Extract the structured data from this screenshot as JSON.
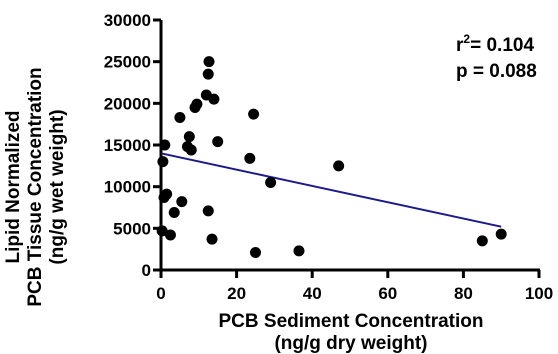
{
  "chart_data": {
    "type": "scatter",
    "xlabel_lines": [
      "PCB Sediment Concentration",
      "(ng/g dry weight)"
    ],
    "ylabel_lines": [
      "Lipid Normalized",
      "PCB Tissue Concentration",
      "(ng/g wet weight)"
    ],
    "xlim": [
      0,
      100
    ],
    "ylim": [
      0,
      30000
    ],
    "x_ticks": [
      0,
      20,
      40,
      60,
      80,
      100
    ],
    "y_ticks": [
      0,
      5000,
      10000,
      15000,
      20000,
      25000,
      30000
    ],
    "x_tick_labels": [
      "0",
      "20",
      "40",
      "60",
      "80",
      "100"
    ],
    "y_tick_labels": [
      "0",
      "5000",
      "10000",
      "15000",
      "20000",
      "25000",
      "30000"
    ],
    "stats": {
      "r2_prefix": "r",
      "r2_sup": "2",
      "r2_value": "= 0.104",
      "p": "p = 0.088"
    },
    "point_color": "#000000",
    "line_color": "#1a1a8c",
    "points": [
      {
        "x": 0.3,
        "y": 4700
      },
      {
        "x": 0.5,
        "y": 13000
      },
      {
        "x": 0.8,
        "y": 8700
      },
      {
        "x": 1.0,
        "y": 15000
      },
      {
        "x": 1.5,
        "y": 9100
      },
      {
        "x": 2.5,
        "y": 4200
      },
      {
        "x": 3.5,
        "y": 6900
      },
      {
        "x": 5.0,
        "y": 18300
      },
      {
        "x": 5.5,
        "y": 8200
      },
      {
        "x": 7.0,
        "y": 14800
      },
      {
        "x": 7.5,
        "y": 16000
      },
      {
        "x": 8.0,
        "y": 14400
      },
      {
        "x": 9.0,
        "y": 19500
      },
      {
        "x": 9.5,
        "y": 19900
      },
      {
        "x": 12.0,
        "y": 21000
      },
      {
        "x": 12.5,
        "y": 23500
      },
      {
        "x": 12.7,
        "y": 25000
      },
      {
        "x": 12.5,
        "y": 7100
      },
      {
        "x": 13.5,
        "y": 3700
      },
      {
        "x": 14.0,
        "y": 20500
      },
      {
        "x": 15.0,
        "y": 15400
      },
      {
        "x": 23.5,
        "y": 13400
      },
      {
        "x": 24.5,
        "y": 18700
      },
      {
        "x": 25.0,
        "y": 2100
      },
      {
        "x": 29.0,
        "y": 10500
      },
      {
        "x": 36.5,
        "y": 2300
      },
      {
        "x": 47.0,
        "y": 12500
      },
      {
        "x": 85.0,
        "y": 3500
      },
      {
        "x": 90.0,
        "y": 4300
      }
    ],
    "regression": {
      "x": [
        0,
        90
      ],
      "y": [
        14000,
        5200
      ]
    }
  }
}
